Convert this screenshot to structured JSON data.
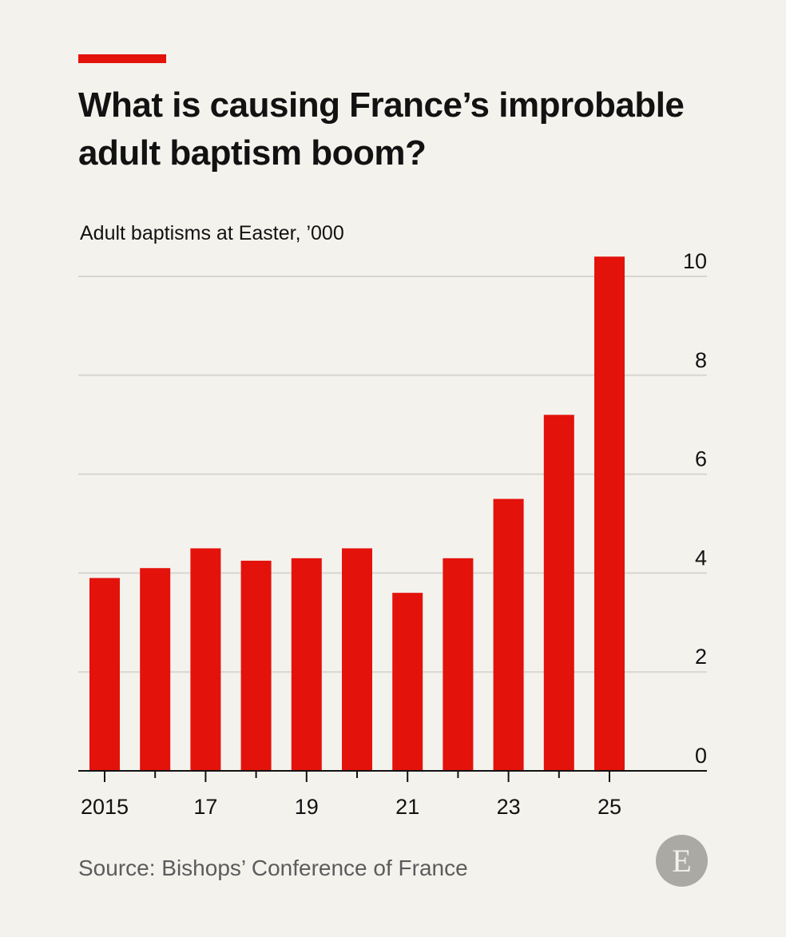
{
  "header": {
    "title": "What is causing France’s improbable adult baptism boom?",
    "subtitle": "Adult baptisms at Easter, ’000"
  },
  "footer": {
    "source": "Source: Bishops’ Conference of France",
    "logo_letter": "E"
  },
  "colors": {
    "accent": "#e3120b",
    "bar": "#e3120b",
    "grid": "#d7d6d2",
    "axis": "#121212",
    "background": "#f4f2ed",
    "logo": "#aaa9a3"
  },
  "chart_data": {
    "type": "bar",
    "title": "Adult baptisms at Easter, ’000",
    "categories": [
      "2015",
      "2016",
      "2017",
      "2018",
      "2019",
      "2020",
      "2021",
      "2022",
      "2023",
      "2024",
      "2025"
    ],
    "values": [
      3.9,
      4.1,
      4.5,
      4.25,
      4.3,
      4.5,
      3.6,
      4.3,
      5.5,
      7.2,
      10.4
    ],
    "x_tick_labels": [
      "2015",
      "17",
      "19",
      "21",
      "23",
      "25"
    ],
    "x_tick_label_categories": [
      "2015",
      "2017",
      "2019",
      "2021",
      "2023",
      "2025"
    ],
    "y_ticks": [
      0,
      2,
      4,
      6,
      8,
      10
    ],
    "ylim": [
      0,
      10
    ],
    "y_axis_side": "right",
    "grid": true,
    "legend": "none"
  }
}
